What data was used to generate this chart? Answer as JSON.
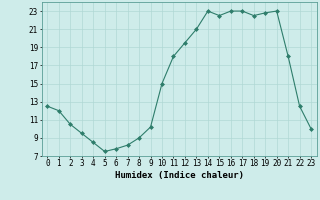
{
  "title": "",
  "xlabel": "Humidex (Indice chaleur)",
  "x": [
    0,
    1,
    2,
    3,
    4,
    5,
    6,
    7,
    8,
    9,
    10,
    11,
    12,
    13,
    14,
    15,
    16,
    17,
    18,
    19,
    20,
    21,
    22,
    23
  ],
  "y": [
    12.5,
    12.0,
    10.5,
    9.5,
    8.5,
    7.5,
    7.8,
    8.2,
    9.0,
    10.2,
    15.0,
    18.0,
    19.5,
    21.0,
    23.0,
    22.5,
    23.0,
    23.0,
    22.5,
    22.8,
    23.0,
    18.0,
    12.5,
    10.0
  ],
  "line_color": "#2e7d6b",
  "marker": "D",
  "marker_size": 2.0,
  "bg_color": "#ceecea",
  "grid_color": "#b0d8d5",
  "ylim": [
    7,
    24
  ],
  "xlim": [
    -0.5,
    23.5
  ],
  "yticks": [
    7,
    9,
    11,
    13,
    15,
    17,
    19,
    21,
    23
  ],
  "xticks": [
    0,
    1,
    2,
    3,
    4,
    5,
    6,
    7,
    8,
    9,
    10,
    11,
    12,
    13,
    14,
    15,
    16,
    17,
    18,
    19,
    20,
    21,
    22,
    23
  ],
  "tick_fontsize": 5.5,
  "label_fontsize": 6.5
}
